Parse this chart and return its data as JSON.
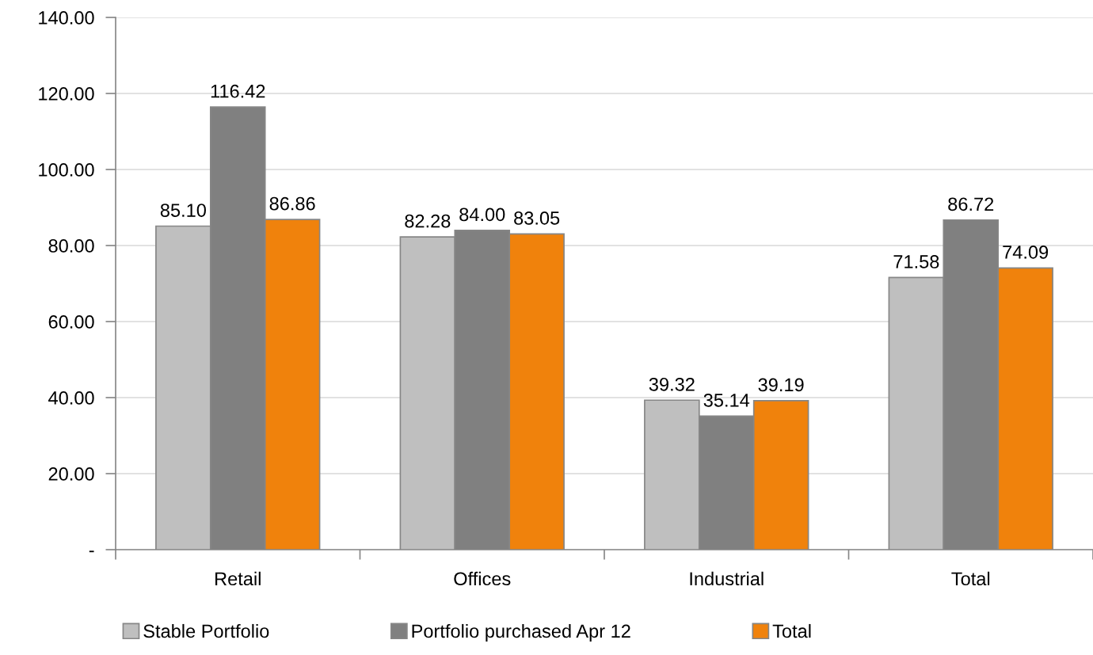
{
  "chart_data": {
    "type": "bar",
    "categories": [
      "Retail",
      "Offices",
      "Industrial",
      "Total"
    ],
    "series": [
      {
        "name": "Stable Portfolio",
        "color": "#bfbfbf",
        "values": [
          85.1,
          82.28,
          39.32,
          71.58
        ],
        "value_labels": [
          "85.10",
          "82.28",
          "39.32",
          "71.58"
        ]
      },
      {
        "name": "Portfolio purchased Apr 12",
        "color": "#808080",
        "values": [
          116.42,
          84.0,
          35.14,
          86.72
        ],
        "value_labels": [
          "116.42",
          "84.00",
          "35.14",
          "86.72"
        ]
      },
      {
        "name": "Total",
        "color": "#f0820c",
        "values": [
          86.86,
          83.05,
          39.19,
          74.09
        ],
        "value_labels": [
          "86.86",
          "83.05",
          "39.19",
          "74.09"
        ]
      }
    ],
    "ylim": [
      0,
      140
    ],
    "yticks": [
      {
        "value": 0,
        "label": "-"
      },
      {
        "value": 20,
        "label": "20.00"
      },
      {
        "value": 40,
        "label": "40.00"
      },
      {
        "value": 60,
        "label": "60.00"
      },
      {
        "value": 80,
        "label": "80.00"
      },
      {
        "value": 100,
        "label": "100.00"
      },
      {
        "value": 120,
        "label": "120.00"
      },
      {
        "value": 140,
        "label": "140.00"
      }
    ],
    "grid": "y",
    "legend": "bottom"
  }
}
